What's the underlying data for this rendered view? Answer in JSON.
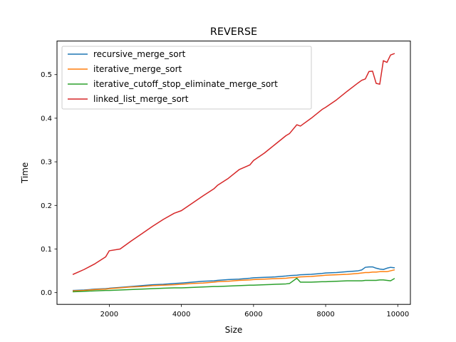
{
  "chart_data": {
    "type": "line",
    "title": "REVERSE",
    "xlabel": "Size",
    "ylabel": "Time",
    "xlim": [
      550,
      10350
    ],
    "ylim": [
      -0.027,
      0.577
    ],
    "xticks": [
      2000,
      4000,
      6000,
      8000,
      10000
    ],
    "yticks": [
      0.0,
      0.1,
      0.2,
      0.3,
      0.4,
      0.5
    ],
    "xtick_labels": [
      "2000",
      "4000",
      "6000",
      "8000",
      "10000"
    ],
    "ytick_labels": [
      "0.0",
      "0.1",
      "0.2",
      "0.3",
      "0.4",
      "0.5"
    ],
    "grid": false,
    "legend_position": "upper-left",
    "x": [
      1000,
      1300,
      1600,
      1900,
      2000,
      2300,
      2600,
      2900,
      3200,
      3500,
      3800,
      4000,
      4300,
      4600,
      4900,
      5000,
      5300,
      5600,
      5900,
      6000,
      6300,
      6600,
      6900,
      7000,
      7200,
      7300,
      7600,
      7900,
      8000,
      8300,
      8600,
      8900,
      9000,
      9100,
      9200,
      9300,
      9400,
      9500,
      9600,
      9700,
      9800,
      9900
    ],
    "series": [
      {
        "name": "recursive_merge_sort",
        "color": "#1f77b4",
        "values": [
          0.005,
          0.006,
          0.008,
          0.009,
          0.01,
          0.012,
          0.014,
          0.016,
          0.018,
          0.019,
          0.021,
          0.022,
          0.024,
          0.026,
          0.027,
          0.028,
          0.03,
          0.031,
          0.033,
          0.034,
          0.035,
          0.036,
          0.038,
          0.039,
          0.04,
          0.041,
          0.042,
          0.044,
          0.045,
          0.046,
          0.048,
          0.05,
          0.052,
          0.058,
          0.059,
          0.059,
          0.056,
          0.054,
          0.053,
          0.056,
          0.058,
          0.057
        ]
      },
      {
        "name": "iterative_merge_sort",
        "color": "#ff7f0e",
        "values": [
          0.004,
          0.005,
          0.007,
          0.008,
          0.009,
          0.011,
          0.013,
          0.014,
          0.016,
          0.017,
          0.018,
          0.019,
          0.021,
          0.022,
          0.024,
          0.025,
          0.026,
          0.028,
          0.029,
          0.03,
          0.031,
          0.032,
          0.033,
          0.034,
          0.035,
          0.036,
          0.037,
          0.039,
          0.04,
          0.041,
          0.042,
          0.044,
          0.045,
          0.046,
          0.046,
          0.047,
          0.047,
          0.048,
          0.048,
          0.048,
          0.05,
          0.052
        ]
      },
      {
        "name": "iterative_cutoff_stop_eliminate_merge_sort",
        "color": "#2ca02c",
        "values": [
          0.002,
          0.003,
          0.004,
          0.005,
          0.005,
          0.006,
          0.007,
          0.008,
          0.009,
          0.01,
          0.011,
          0.011,
          0.012,
          0.013,
          0.014,
          0.014,
          0.015,
          0.016,
          0.017,
          0.017,
          0.018,
          0.019,
          0.02,
          0.021,
          0.033,
          0.024,
          0.024,
          0.025,
          0.025,
          0.026,
          0.027,
          0.027,
          0.027,
          0.028,
          0.028,
          0.028,
          0.028,
          0.029,
          0.029,
          0.028,
          0.027,
          0.032
        ]
      },
      {
        "name": "linked_list_merge_sort",
        "color": "#d62728",
        "values": [
          0.042,
          0.053,
          0.066,
          0.082,
          0.096,
          0.1,
          0.118,
          0.135,
          0.152,
          0.168,
          0.182,
          0.188,
          0.205,
          0.222,
          0.238,
          0.246,
          0.262,
          0.282,
          0.293,
          0.303,
          0.32,
          0.34,
          0.36,
          0.365,
          0.385,
          0.382,
          0.4,
          0.42,
          0.425,
          0.442,
          0.462,
          0.481,
          0.487,
          0.49,
          0.507,
          0.508,
          0.48,
          0.478,
          0.532,
          0.528,
          0.545,
          0.548
        ]
      }
    ]
  }
}
